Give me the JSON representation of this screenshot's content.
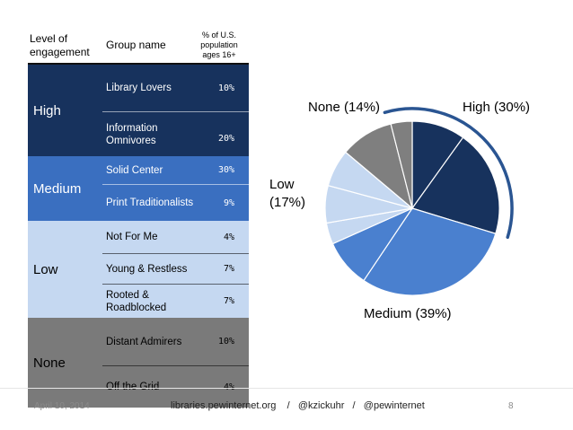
{
  "table": {
    "headers": {
      "level": "Level of engagement",
      "group": "Group name",
      "share": "% of U.S. population ages 16+"
    },
    "groups": [
      {
        "level": "High",
        "color": "#17325d",
        "rows": [
          {
            "name": "Library Lovers",
            "pct": "10%"
          },
          {
            "name": "Information Omnivores",
            "pct": "20%"
          }
        ]
      },
      {
        "level": "Medium",
        "color": "#3a6fc0",
        "rows": [
          {
            "name": "Solid Center",
            "pct": "30%"
          },
          {
            "name": "Print Traditionalists",
            "pct": "9%"
          }
        ]
      },
      {
        "level": "Low",
        "color": "#c5d8f1",
        "rows": [
          {
            "name": "Not For Me",
            "pct": "4%"
          },
          {
            "name": "Young & Restless",
            "pct": "7%"
          },
          {
            "name": "Rooted & Roadblocked",
            "pct": "7%"
          }
        ]
      },
      {
        "level": "None",
        "color": "#7a7a7a",
        "rows": [
          {
            "name": "Distant Admirers",
            "pct": "10%"
          },
          {
            "name": "Off the Grid",
            "pct": "4%"
          }
        ]
      }
    ]
  },
  "chart_data": {
    "type": "pie",
    "title": "",
    "start_angle_deg": 0,
    "direction": "clockwise",
    "slices": [
      {
        "label": "Library Lovers",
        "value": 10,
        "color": "#17325d",
        "group": "High"
      },
      {
        "label": "Information Omnivores",
        "value": 20,
        "color": "#17325d",
        "group": "High"
      },
      {
        "label": "Solid Center",
        "value": 30,
        "color": "#4a80cf",
        "group": "Medium"
      },
      {
        "label": "Print Traditionalists",
        "value": 9,
        "color": "#4a80cf",
        "group": "Medium"
      },
      {
        "label": "Not For Me",
        "value": 4,
        "color": "#c5d8f1",
        "group": "Low"
      },
      {
        "label": "Young & Restless",
        "value": 7,
        "color": "#c5d8f1",
        "group": "Low"
      },
      {
        "label": "Rooted & Roadblocked",
        "value": 7,
        "color": "#c5d8f1",
        "group": "Low"
      },
      {
        "label": "Distant Admirers",
        "value": 10,
        "color": "#7f7f7f",
        "group": "None"
      },
      {
        "label": "Off the Grid",
        "value": 4,
        "color": "#7f7f7f",
        "group": "None"
      }
    ],
    "group_labels": {
      "high": "High (30%)",
      "none": "None (14%)",
      "low_line1": "Low",
      "low_line2": "(17%)",
      "medium": "Medium (39%)"
    },
    "highlight": {
      "group": "High",
      "arc_color": "#2a5592"
    },
    "slice_border_color": "#ffffff"
  },
  "footer": {
    "date": "April 10, 2014",
    "site": "libraries.pewinternet.org",
    "sep1": "/",
    "handle1": "@kzickuhr",
    "sep2": "/",
    "handle2": "@pewinternet",
    "page": "8"
  }
}
